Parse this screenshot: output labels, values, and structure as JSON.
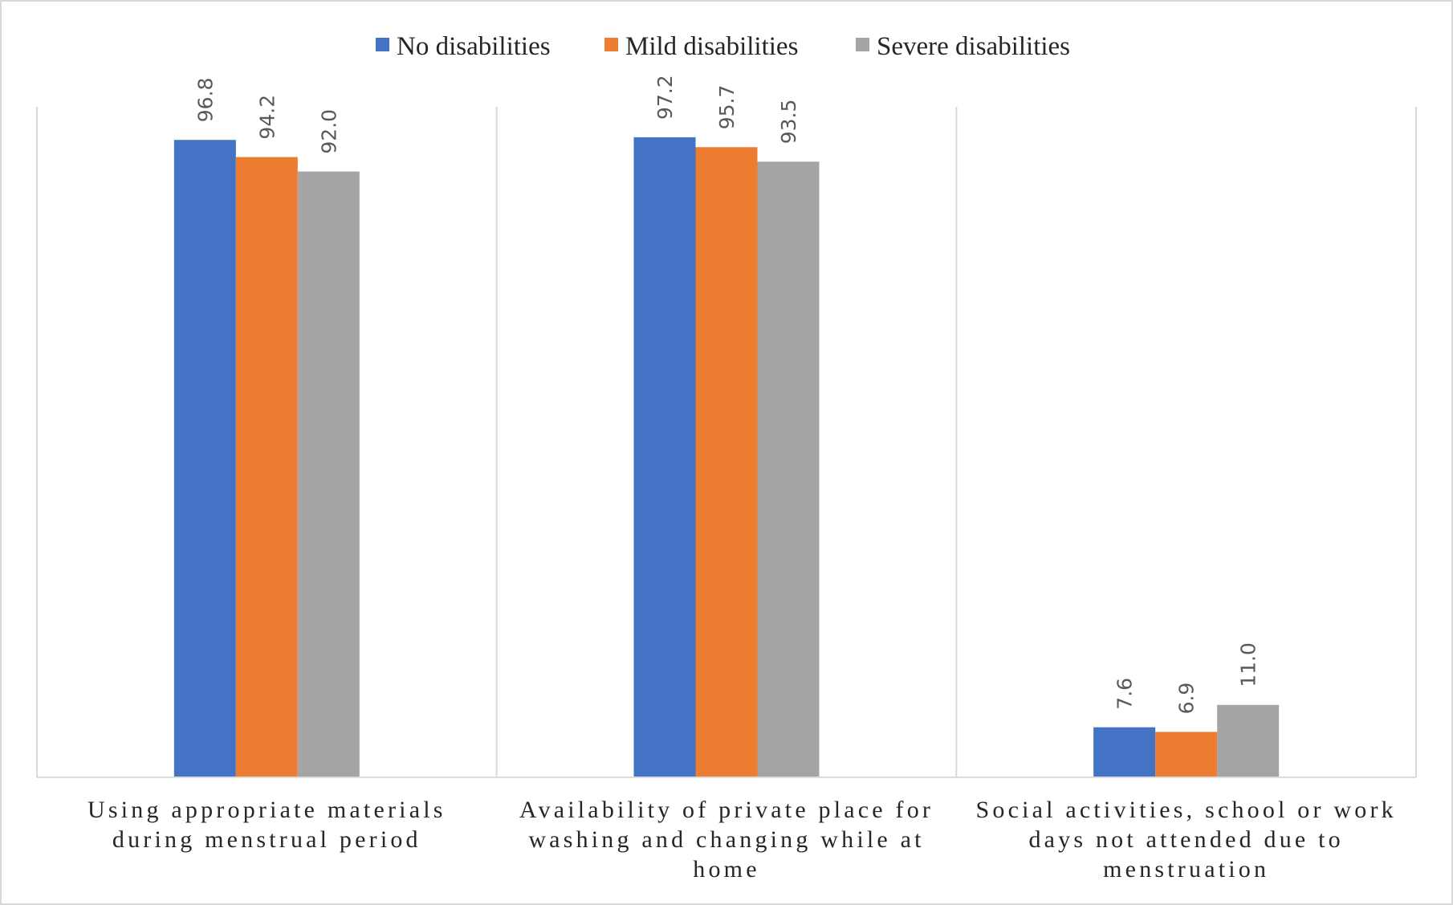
{
  "chart_data": {
    "type": "bar",
    "title": "",
    "xlabel": "",
    "ylabel": "",
    "ylim": [
      0,
      100
    ],
    "grid": false,
    "legend_position": "top-center",
    "categories": [
      [
        "Using appropriate materials",
        "during menstrual period"
      ],
      [
        "Availability of private place for",
        "washing and changing while at",
        "home"
      ],
      [
        "Social activities, school or work",
        "days not attended due to",
        "menstruation"
      ]
    ],
    "series": [
      {
        "name": "No disabilities",
        "color": "#4472C4",
        "values": [
          96.8,
          97.2,
          7.6
        ],
        "labels": [
          "96.8",
          "97.2",
          "7.6"
        ]
      },
      {
        "name": "Mild disabilities",
        "color": "#ED7D31",
        "values": [
          94.2,
          95.7,
          6.9
        ],
        "labels": [
          "94.2",
          "95.7",
          "6.9"
        ]
      },
      {
        "name": "Severe disabilities",
        "color": "#A5A5A5",
        "values": [
          92.0,
          93.5,
          11.0
        ],
        "labels": [
          "92.0",
          "93.5",
          "11.0"
        ]
      }
    ]
  }
}
